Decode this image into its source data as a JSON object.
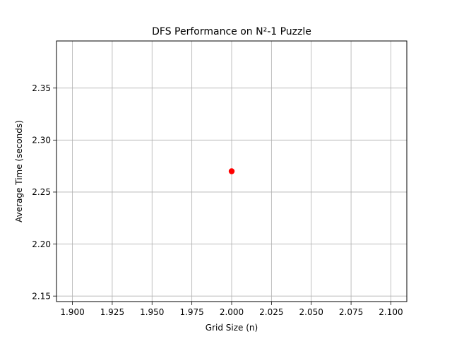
{
  "chart_data": {
    "type": "scatter",
    "title": "DFS Performance on N²-1 Puzzle",
    "xlabel": "Grid Size (n)",
    "ylabel": "Average Time (seconds)",
    "xlim": [
      1.89,
      2.11
    ],
    "ylim": [
      2.1447,
      2.3953
    ],
    "x_ticks": [
      "1.900",
      "1.925",
      "1.950",
      "1.975",
      "2.000",
      "2.025",
      "2.050",
      "2.075",
      "2.100"
    ],
    "x_tick_values": [
      1.9,
      1.925,
      1.95,
      1.975,
      2.0,
      2.025,
      2.05,
      2.075,
      2.1
    ],
    "y_ticks": [
      "2.15",
      "2.20",
      "2.25",
      "2.30",
      "2.35"
    ],
    "y_tick_values": [
      2.15,
      2.2,
      2.25,
      2.3,
      2.35
    ],
    "grid": true,
    "series": [
      {
        "x": [
          2.0
        ],
        "y": [
          2.27
        ],
        "color": "#ff0000",
        "marker": "circle"
      }
    ]
  }
}
